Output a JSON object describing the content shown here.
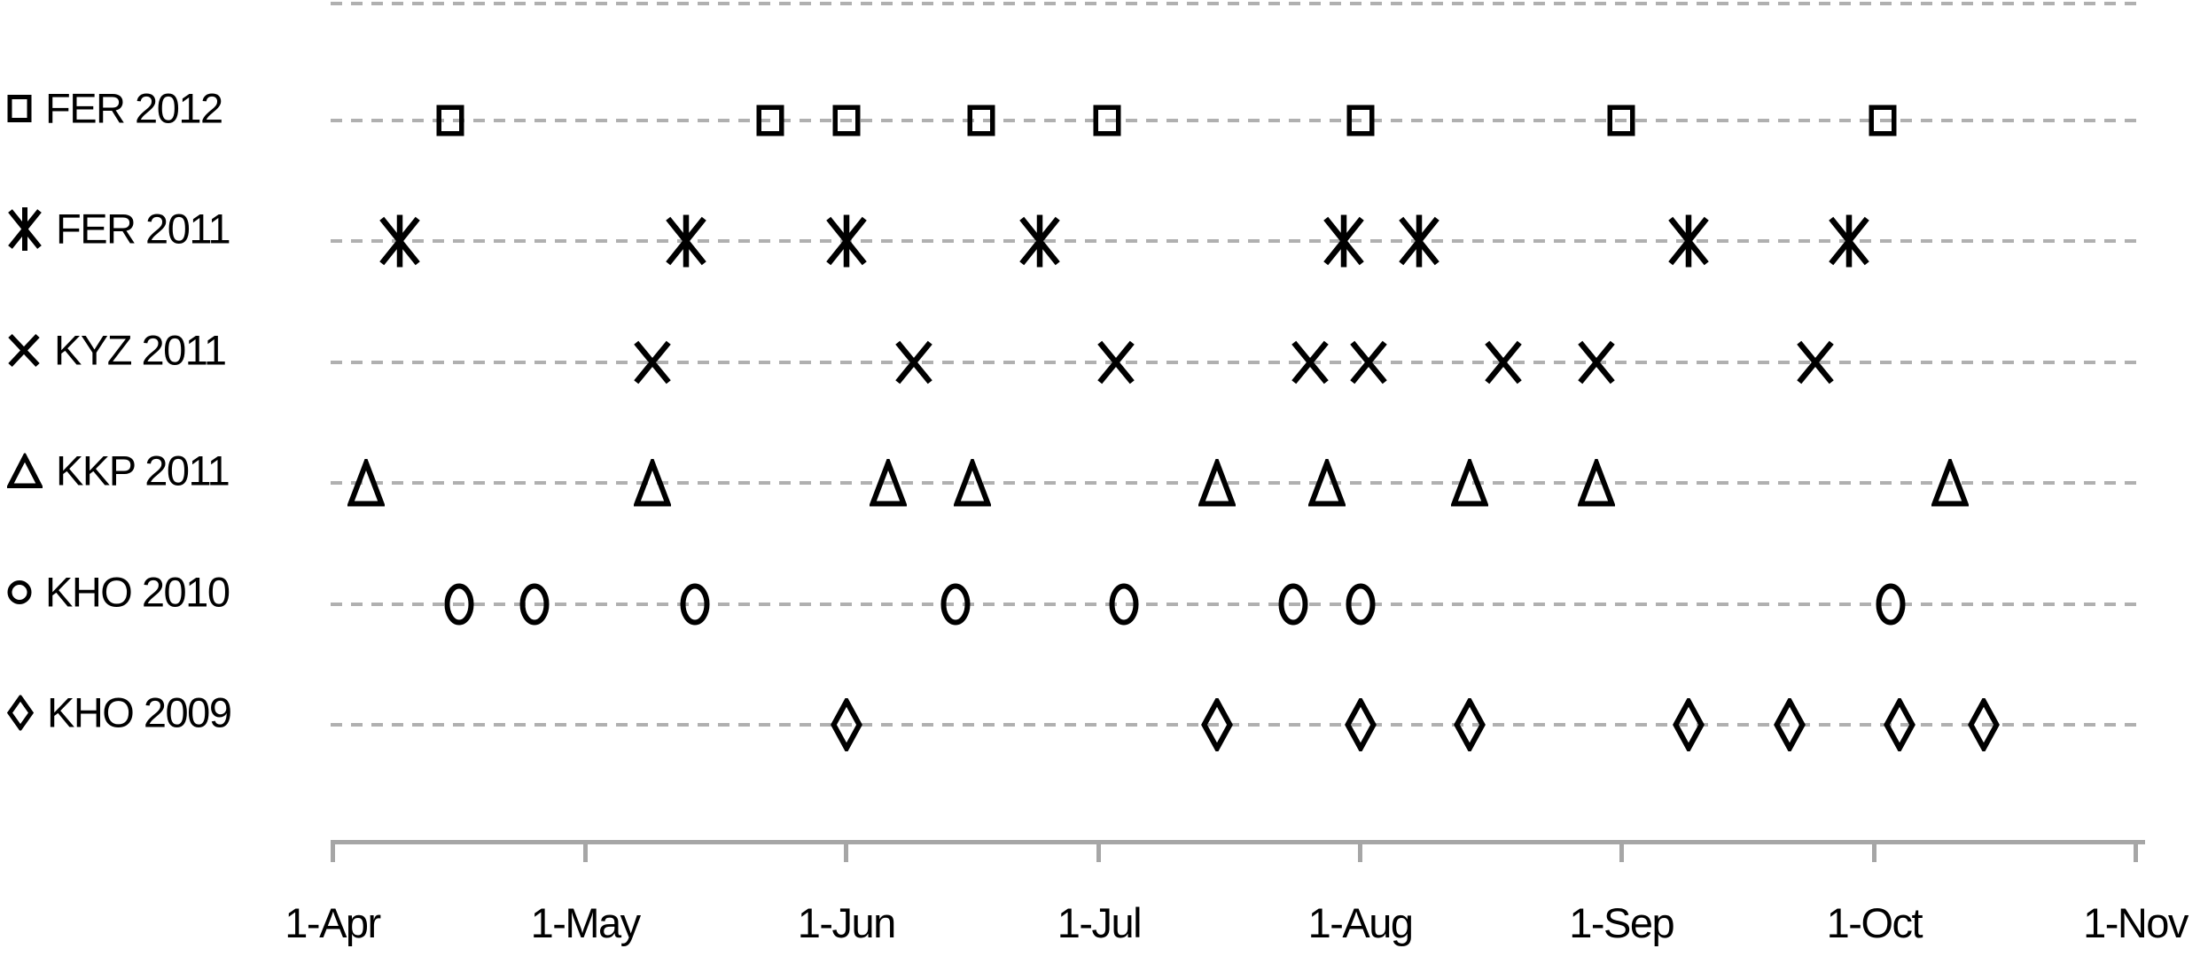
{
  "chart_data": {
    "type": "scatter",
    "x_axis": {
      "tick_labels": [
        "1-Apr",
        "1-May",
        "1-Jun",
        "1-Jul",
        "1-Aug",
        "1-Sep",
        "1-Oct",
        "1-Nov"
      ],
      "tick_days": [
        0,
        30,
        61,
        91,
        122,
        153,
        183,
        214
      ],
      "unit": "days since 1-Apr",
      "range_days": [
        0,
        214
      ]
    },
    "y_axis": {
      "categories": [
        "FER 2012",
        "FER 2011",
        "KYZ 2011",
        "KKP 2011",
        "KHO 2010",
        "KHO 2009"
      ]
    },
    "grid": "horizontal dashed line per category row plus top line",
    "legend_position": "left of each row",
    "series": [
      {
        "label": "FER 2012",
        "marker": "square",
        "icon": "open-square-icon",
        "days": [
          14,
          52,
          61,
          77,
          92,
          122,
          153,
          184
        ],
        "dates": [
          "15-Apr",
          "23-May",
          "1-Jun",
          "17-Jun",
          "2-Jul",
          "1-Aug",
          "1-Sep",
          "2-Oct"
        ]
      },
      {
        "label": "FER 2011",
        "marker": "asterisk",
        "icon": "asterisk-star-icon",
        "days": [
          8,
          42,
          61,
          84,
          120,
          129,
          161,
          180
        ],
        "dates": [
          "9-Apr",
          "13-May",
          "1-Jun",
          "24-Jun",
          "30-Jul",
          "8-Aug",
          "9-Sep",
          "28-Sep"
        ]
      },
      {
        "label": "KYZ 2011",
        "marker": "x",
        "icon": "x-cross-icon",
        "days": [
          38,
          69,
          93,
          116,
          123,
          139,
          150,
          176
        ],
        "dates": [
          "9-May",
          "9-Jun",
          "3-Jul",
          "26-Jul",
          "2-Aug",
          "18-Aug",
          "29-Aug",
          "24-Sep"
        ]
      },
      {
        "label": "KKP 2011",
        "marker": "triangle",
        "icon": "open-triangle-icon",
        "days": [
          4,
          38,
          66,
          76,
          105,
          118,
          135,
          150,
          192
        ],
        "dates": [
          "5-Apr",
          "9-May",
          "6-Jun",
          "16-Jun",
          "15-Jul",
          "28-Jul",
          "14-Aug",
          "29-Aug",
          "10-Oct"
        ]
      },
      {
        "label": "KHO 2010",
        "marker": "circle",
        "icon": "open-circle-icon",
        "days": [
          15,
          24,
          43,
          74,
          94,
          114,
          122,
          185
        ],
        "dates": [
          "16-Apr",
          "25-Apr",
          "14-May",
          "14-Jun",
          "4-Jul",
          "24-Jul",
          "1-Aug",
          "3-Oct"
        ]
      },
      {
        "label": "KHO 2009",
        "marker": "diamond",
        "icon": "open-diamond-icon",
        "days": [
          61,
          105,
          122,
          135,
          161,
          173,
          186,
          196
        ],
        "dates": [
          "1-Jun",
          "15-Jul",
          "1-Aug",
          "14-Aug",
          "9-Sep",
          "21-Sep",
          "4-Oct",
          "14-Oct"
        ]
      }
    ],
    "colors": {
      "marker": "#000000",
      "gridline": "#b0b0b0",
      "axis": "#a6a6a6",
      "text": "#000000",
      "background": "#ffffff"
    }
  }
}
